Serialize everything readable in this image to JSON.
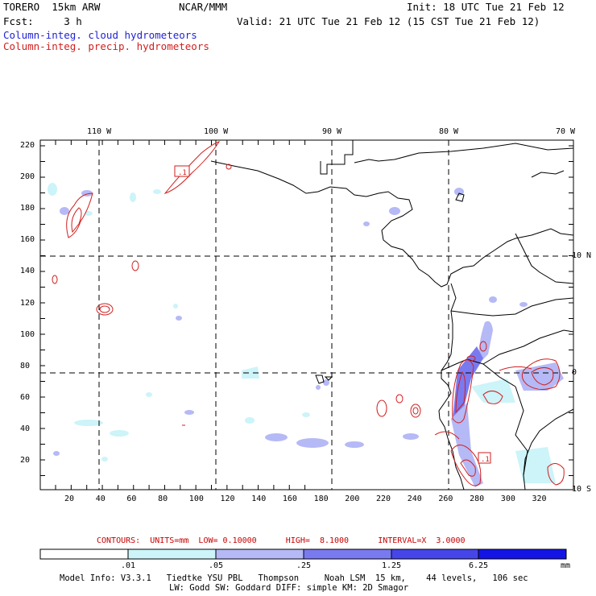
{
  "header": {
    "left_line1": "TORERO  15km ARW",
    "center_line1": "NCAR/MMM",
    "right_line1": "Init: 18 UTC Tue 21 Feb 12",
    "left_line2": "Fcst:     3 h",
    "right_line2": "Valid: 21 UTC Tue 21 Feb 12 (15 CST Tue 21 Feb 12)",
    "field1": "Column-integ. cloud hydrometeors",
    "field2": "Column-integ. precip. hydrometeors",
    "field1_color": "#2323d2",
    "field2_color": "#d21e1e"
  },
  "map": {
    "top_lon_labels": [
      "110 W",
      "100 W",
      "90 W",
      "80 W",
      "70 W"
    ],
    "right_lat_labels": [
      "10 N",
      "0",
      "10 S"
    ],
    "y_ticks": [
      "220",
      "200",
      "180",
      "160",
      "140",
      "120",
      "100",
      "80",
      "60",
      "40",
      "20"
    ],
    "x_ticks": [
      "20",
      "40",
      "60",
      "80",
      "100",
      "120",
      "140",
      "160",
      "180",
      "200",
      "220",
      "240",
      "260",
      "280",
      "300",
      "320"
    ],
    "box_labels": [
      ".1",
      ".1"
    ]
  },
  "legend": {
    "contour_text": "CONTOURS:  UNITS=mm  LOW= 0.10000      HIGH=  8.1000      INTERVAL=X  3.0000",
    "colorbar_ticks": [
      ".01",
      ".05",
      ".25",
      "1.25",
      "6.25"
    ],
    "colorbar_unit": "mm",
    "colors": [
      "#ffffff",
      "#ccf4f9",
      "#b5b9f5",
      "#7a7af0",
      "#4646e8",
      "#1414e6"
    ]
  },
  "footer": {
    "line1": "Model Info: V3.3.1   Tiedtke YSU PBL   Thompson     Noah LSM  15 km,    44 levels,   106 sec",
    "line2": "LW: Godd SW: Goddard DIFF: simple KM: 2D Smagor"
  }
}
